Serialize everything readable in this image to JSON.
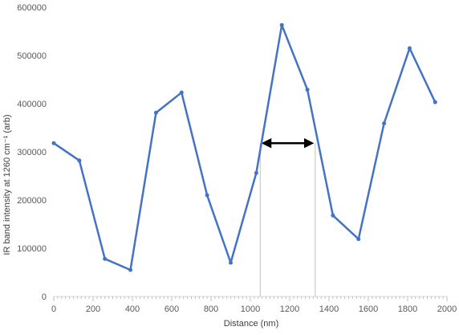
{
  "chart_data": {
    "type": "line",
    "xlabel": "Distance (nm)",
    "ylabel": "IR band intensity at 1260 cm⁻¹ (arb)",
    "xlim": [
      0,
      2000
    ],
    "ylim": [
      0,
      600000
    ],
    "x_ticks": [
      0,
      200,
      400,
      600,
      800,
      1000,
      1200,
      1400,
      1600,
      1800,
      2000
    ],
    "y_ticks": [
      0,
      100000,
      200000,
      300000,
      400000,
      500000,
      600000
    ],
    "grid": false,
    "legend": "none",
    "series": [
      {
        "color": "#4472c4",
        "x": [
          0,
          130,
          260,
          390,
          520,
          650,
          780,
          900,
          1030,
          1160,
          1290,
          1420,
          1550,
          1680,
          1810,
          1940
        ],
        "y": [
          318000,
          282000,
          78000,
          55000,
          381000,
          423000,
          210000,
          70000,
          256000,
          563000,
          429000,
          168000,
          119000,
          359000,
          515000,
          403000
        ]
      }
    ],
    "annotations": {
      "arrow_y": 318000,
      "vlines_x": [
        1050,
        1330
      ],
      "arrow_color": "#000000",
      "vline_color": "#bfbfbf"
    }
  }
}
